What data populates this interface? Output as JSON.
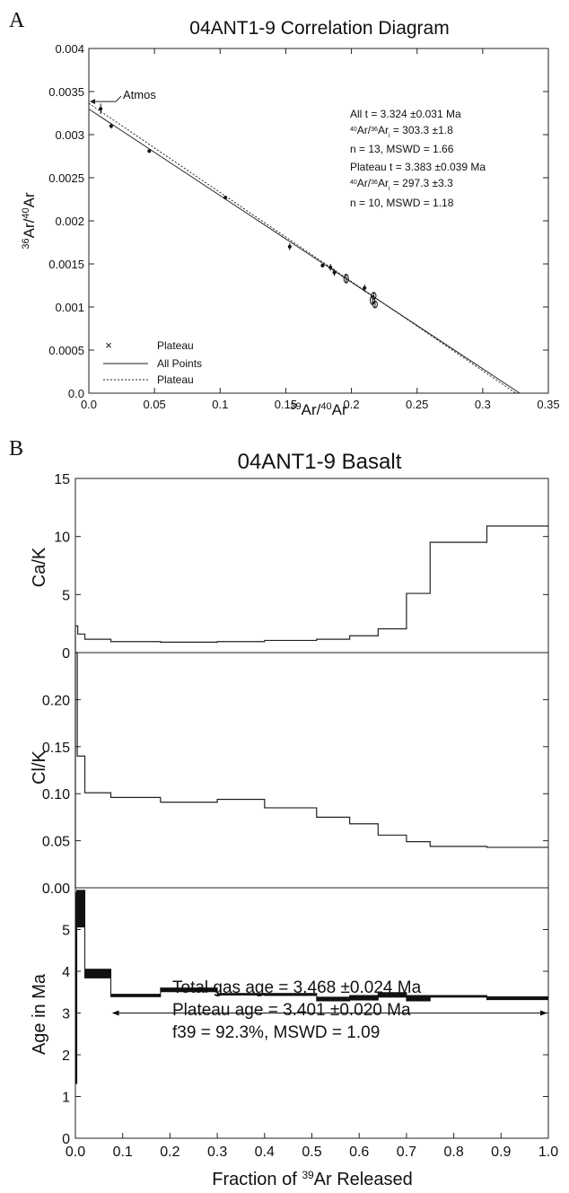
{
  "panelA": {
    "letter": "A",
    "title": "04ANT1-9 Correlation Diagram",
    "xlabel_parts": [
      "39",
      "Ar/",
      "40",
      "Ar"
    ],
    "ylabel_parts": [
      "36",
      "Ar/",
      "40",
      "Ar"
    ],
    "atmos_label": "Atmos",
    "legend": [
      "Plateau",
      "All Points",
      "Plateau"
    ],
    "annotation": {
      "all_t": "All t = 3.324 ±0.031 Ma",
      "all_ratio": [
        "40",
        "Ar/",
        "36",
        "Ar",
        "i",
        " = 303.3 ±1.8"
      ],
      "all_n": "n = 13, MSWD = 1.66",
      "plateau_t": "Plateau t = 3.383 ±0.039 Ma",
      "plateau_ratio": [
        "40",
        "Ar/",
        "36",
        "Ar",
        "i",
        " = 297.3 ±3.3"
      ],
      "plateau_n": "n = 10, MSWD = 1.18"
    }
  },
  "panelB": {
    "letter": "B",
    "title": "04ANT1-9 Basalt",
    "xlabel_parts": [
      "Fraction of ",
      "39",
      "Ar Released"
    ],
    "ylabel_cak": "Ca/K",
    "ylabel_clk": "Cl/K",
    "ylabel_age": "Age in Ma",
    "summary": [
      "Total gas age = 3.468 ±0.024 Ma",
      "Plateau age = 3.401 ±0.020 Ma",
      "f39 = 92.3%, MSWD = 1.09"
    ]
  },
  "chart_data": [
    {
      "type": "scatter",
      "title": "04ANT1-9 Correlation Diagram",
      "xlabel": "39Ar/40Ar",
      "ylabel": "36Ar/40Ar",
      "xlim": [
        0,
        0.35
      ],
      "ylim": [
        0,
        0.004
      ],
      "xticks": [
        0.0,
        0.05,
        0.1,
        0.15,
        0.2,
        0.25,
        0.3,
        0.35
      ],
      "xtick_labels": [
        "0.0",
        "0.05",
        "0.1",
        "0.15",
        "0.2",
        "0.25",
        "0.3",
        "0.35"
      ],
      "yticks": [
        0.0,
        0.0005,
        0.001,
        0.0015,
        0.002,
        0.0025,
        0.003,
        0.0035,
        0.004
      ],
      "ytick_labels": [
        "0.0",
        "0.0005",
        "0.001",
        "0.0015",
        "0.002",
        "0.0025",
        "0.003",
        "0.0035",
        "0.004"
      ],
      "points": [
        {
          "x": 0.009,
          "y": 0.0033,
          "err": 6e-05,
          "marker": "dot"
        },
        {
          "x": 0.017,
          "y": 0.0031,
          "err": 3e-05,
          "marker": "dot"
        },
        {
          "x": 0.046,
          "y": 0.00281,
          "err": 2e-05,
          "marker": "dot"
        },
        {
          "x": 0.104,
          "y": 0.00227,
          "err": 2e-05,
          "marker": "dot"
        },
        {
          "x": 0.153,
          "y": 0.0017,
          "err": 4e-05,
          "marker": "dot"
        },
        {
          "x": 0.178,
          "y": 0.00148,
          "err": 2e-05,
          "marker": "dot"
        },
        {
          "x": 0.184,
          "y": 0.00146,
          "err": 4e-05,
          "marker": "dot"
        },
        {
          "x": 0.187,
          "y": 0.0014,
          "err": 4e-05,
          "marker": "dot"
        },
        {
          "x": 0.196,
          "y": 0.00133,
          "err": 5e-05,
          "marker": "open"
        },
        {
          "x": 0.21,
          "y": 0.00122,
          "err": 4e-05,
          "marker": "dot"
        },
        {
          "x": 0.216,
          "y": 0.00108,
          "err": 5e-05,
          "marker": "open"
        },
        {
          "x": 0.217,
          "y": 0.00113,
          "err": 4e-05,
          "marker": "open"
        },
        {
          "x": 0.218,
          "y": 0.00103,
          "err": 4e-05,
          "marker": "open"
        }
      ],
      "series": [
        {
          "name": "All Points",
          "style": "solid",
          "x": [
            0.0,
            0.3282
          ],
          "y": [
            0.003297,
            0.0
          ]
        },
        {
          "name": "Plateau",
          "style": "dotted",
          "x": [
            0.0,
            0.3252
          ],
          "y": [
            0.003363,
            0.0
          ]
        }
      ],
      "atmos_y": 0.003384,
      "legend_position": "bottom-left"
    },
    {
      "type": "line",
      "ylabel": "Ca/K",
      "xlim": [
        0,
        1
      ],
      "ylim": [
        0,
        15
      ],
      "yticks": [
        0,
        5,
        10,
        15
      ],
      "ytick_labels": [
        "0",
        "5",
        "10",
        "15"
      ],
      "steps": [
        {
          "x0": 0.0,
          "x1": 0.005,
          "y": 2.3
        },
        {
          "x0": 0.005,
          "x1": 0.02,
          "y": 1.6
        },
        {
          "x0": 0.02,
          "x1": 0.075,
          "y": 1.15
        },
        {
          "x0": 0.075,
          "x1": 0.18,
          "y": 0.95
        },
        {
          "x0": 0.18,
          "x1": 0.3,
          "y": 0.9
        },
        {
          "x0": 0.3,
          "x1": 0.4,
          "y": 0.95
        },
        {
          "x0": 0.4,
          "x1": 0.51,
          "y": 1.05
        },
        {
          "x0": 0.51,
          "x1": 0.58,
          "y": 1.15
        },
        {
          "x0": 0.58,
          "x1": 0.64,
          "y": 1.45
        },
        {
          "x0": 0.64,
          "x1": 0.7,
          "y": 2.05
        },
        {
          "x0": 0.7,
          "x1": 0.75,
          "y": 5.1
        },
        {
          "x0": 0.75,
          "x1": 0.87,
          "y": 9.5
        },
        {
          "x0": 0.87,
          "x1": 1.0,
          "y": 10.9
        }
      ]
    },
    {
      "type": "line",
      "ylabel": "Cl/K",
      "xlim": [
        0,
        1
      ],
      "ylim": [
        0,
        0.25
      ],
      "yticks": [
        0.0,
        0.05,
        0.1,
        0.15,
        0.2
      ],
      "ytick_labels": [
        "0.00",
        "0.05",
        "0.10",
        "0.15",
        "0.20"
      ],
      "steps": [
        {
          "x0": 0.0,
          "x1": 0.004,
          "y": 0.25
        },
        {
          "x0": 0.004,
          "x1": 0.02,
          "y": 0.14
        },
        {
          "x0": 0.02,
          "x1": 0.075,
          "y": 0.101
        },
        {
          "x0": 0.075,
          "x1": 0.18,
          "y": 0.096
        },
        {
          "x0": 0.18,
          "x1": 0.3,
          "y": 0.091
        },
        {
          "x0": 0.3,
          "x1": 0.4,
          "y": 0.094
        },
        {
          "x0": 0.4,
          "x1": 0.51,
          "y": 0.085
        },
        {
          "x0": 0.51,
          "x1": 0.58,
          "y": 0.075
        },
        {
          "x0": 0.58,
          "x1": 0.64,
          "y": 0.068
        },
        {
          "x0": 0.64,
          "x1": 0.7,
          "y": 0.056
        },
        {
          "x0": 0.7,
          "x1": 0.75,
          "y": 0.049
        },
        {
          "x0": 0.75,
          "x1": 0.87,
          "y": 0.044
        },
        {
          "x0": 0.87,
          "x1": 1.0,
          "y": 0.043
        }
      ]
    },
    {
      "type": "bar",
      "ylabel": "Age in Ma",
      "xlabel": "Fraction of 39Ar Released",
      "xlim": [
        0,
        1
      ],
      "ylim": [
        0,
        6
      ],
      "xticks": [
        0.0,
        0.1,
        0.2,
        0.3,
        0.4,
        0.5,
        0.6,
        0.7,
        0.8,
        0.9,
        1.0
      ],
      "xtick_labels": [
        "0.0",
        "0.1",
        "0.2",
        "0.3",
        "0.4",
        "0.5",
        "0.6",
        "0.7",
        "0.8",
        "0.9",
        "1.0"
      ],
      "yticks": [
        0,
        1,
        2,
        3,
        4,
        5
      ],
      "ytick_labels": [
        "0",
        "1",
        "2",
        "3",
        "4",
        "5"
      ],
      "steps": [
        {
          "x0": 0.0,
          "x1": 0.003,
          "lo": 1.3,
          "hi": 5.9
        },
        {
          "x0": 0.003,
          "x1": 0.02,
          "lo": 5.05,
          "hi": 5.95
        },
        {
          "x0": 0.02,
          "x1": 0.075,
          "lo": 3.83,
          "hi": 4.06
        },
        {
          "x0": 0.075,
          "x1": 0.18,
          "lo": 3.38,
          "hi": 3.46
        },
        {
          "x0": 0.18,
          "x1": 0.3,
          "lo": 3.5,
          "hi": 3.61
        },
        {
          "x0": 0.3,
          "x1": 0.4,
          "lo": 3.42,
          "hi": 3.48
        },
        {
          "x0": 0.4,
          "x1": 0.51,
          "lo": 3.41,
          "hi": 3.48
        },
        {
          "x0": 0.51,
          "x1": 0.58,
          "lo": 3.28,
          "hi": 3.39
        },
        {
          "x0": 0.58,
          "x1": 0.64,
          "lo": 3.3,
          "hi": 3.43
        },
        {
          "x0": 0.64,
          "x1": 0.7,
          "lo": 3.37,
          "hi": 3.5
        },
        {
          "x0": 0.7,
          "x1": 0.75,
          "lo": 3.28,
          "hi": 3.43
        },
        {
          "x0": 0.75,
          "x1": 0.87,
          "lo": 3.37,
          "hi": 3.43
        },
        {
          "x0": 0.87,
          "x1": 1.0,
          "lo": 3.31,
          "hi": 3.4
        }
      ],
      "plateau_range": [
        0.075,
        1.0
      ],
      "plateau_arrow_y": 3.0
    }
  ]
}
